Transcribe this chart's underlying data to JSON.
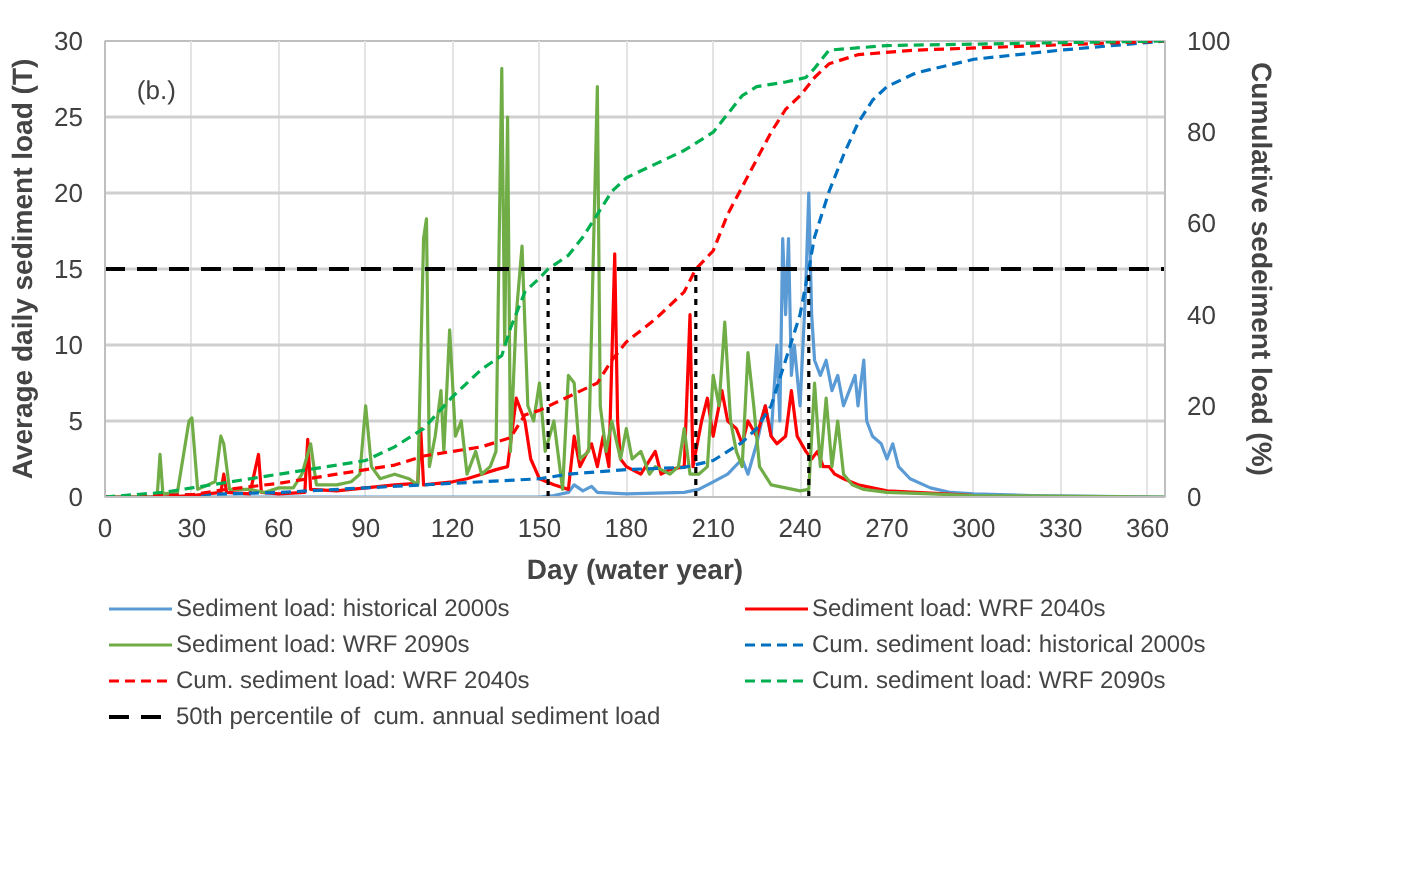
{
  "chart_data": {
    "type": "line",
    "xlabel": "Day (water year)",
    "ylabel": "Average daily sediment load (T)",
    "y2label": "Cumulative sedeiment load (%)",
    "xlim": [
      0,
      366
    ],
    "xticks": [
      0,
      30,
      60,
      90,
      120,
      150,
      180,
      210,
      240,
      270,
      300,
      330,
      360
    ],
    "ylim": [
      0,
      30
    ],
    "yticks": [
      0,
      5,
      10,
      15,
      20,
      25,
      30
    ],
    "y2lim": [
      0,
      100
    ],
    "y2ticks": [
      0,
      20,
      40,
      60,
      80,
      100
    ],
    "grid": true,
    "legend": "bottom",
    "marker": "none",
    "annotations": [
      "(b.)"
    ],
    "series": [
      {
        "name": "Sediment load: historical 2000s",
        "color": "#5b9bd5",
        "line_style": "solid",
        "x": [
          0,
          150,
          155,
          160,
          162,
          165,
          168,
          170,
          180,
          200,
          205,
          210,
          215,
          220,
          222,
          225,
          228,
          230,
          232,
          233,
          234,
          235,
          236,
          237,
          238,
          240,
          242,
          243,
          244,
          245,
          247,
          249,
          251,
          253,
          255,
          257,
          259,
          260,
          262,
          263,
          265,
          268,
          270,
          272,
          274,
          278,
          285,
          292,
          300,
          320,
          366
        ],
        "values": [
          0,
          0,
          0.1,
          0.3,
          0.8,
          0.4,
          0.7,
          0.3,
          0.2,
          0.3,
          0.5,
          1,
          1.5,
          2.5,
          1.5,
          3.5,
          6,
          4,
          10,
          5,
          17,
          12,
          17,
          8,
          10,
          6,
          14,
          20,
          12,
          9,
          8,
          9,
          7,
          8,
          6,
          7,
          8,
          6,
          9,
          5,
          4,
          3.5,
          2.5,
          3.5,
          2,
          1.2,
          0.6,
          0.3,
          0.2,
          0.1,
          0
        ]
      },
      {
        "name": "Sediment load: WRF 2040s",
        "color": "#ff0000",
        "line_style": "solid",
        "x": [
          0,
          20,
          30,
          40,
          41,
          42,
          50,
          53,
          54,
          60,
          69,
          70,
          71,
          80,
          90,
          100,
          108,
          109,
          110,
          120,
          125,
          130,
          135,
          139,
          142,
          145,
          147,
          150,
          155,
          160,
          162,
          164,
          168,
          170,
          172,
          174,
          176,
          177,
          178,
          180,
          185,
          190,
          192,
          195,
          200,
          202,
          203,
          206,
          208,
          210,
          213,
          215,
          218,
          220,
          222,
          225,
          228,
          230,
          232,
          235,
          237,
          239,
          242,
          244,
          246,
          248,
          250,
          252,
          255,
          260,
          265,
          270,
          280,
          290,
          300
        ],
        "values": [
          0,
          0,
          0.1,
          0.3,
          1.5,
          0.3,
          0.2,
          2.8,
          0.3,
          0.2,
          0.3,
          3.8,
          0.5,
          0.4,
          0.6,
          0.8,
          0.9,
          4.5,
          0.8,
          1.0,
          1.2,
          1.5,
          1.8,
          2.0,
          6.5,
          5,
          2.5,
          1.2,
          0.8,
          0.5,
          4,
          2,
          3.5,
          2,
          4,
          2,
          16,
          5,
          2.5,
          2,
          1.5,
          3,
          1.5,
          1.8,
          2,
          12,
          2,
          5,
          6.5,
          4,
          7,
          5,
          4.5,
          3.5,
          5,
          4,
          6,
          4,
          3.5,
          4,
          7,
          4,
          3,
          2.5,
          3,
          2,
          2,
          1.5,
          1.2,
          0.8,
          0.6,
          0.4,
          0.3,
          0.2,
          0.1
        ]
      },
      {
        "name": "Sediment load: WRF 2090s",
        "color": "#70ad47",
        "line_style": "solid",
        "x": [
          0,
          18,
          19,
          20,
          25,
          29,
          30,
          32,
          38,
          40,
          41,
          43,
          50,
          55,
          60,
          65,
          68,
          71,
          73,
          80,
          85,
          88,
          90,
          92,
          95,
          100,
          105,
          108,
          110,
          111,
          112,
          114,
          116,
          117,
          119,
          121,
          123,
          125,
          128,
          130,
          133,
          135,
          137,
          138,
          139,
          140,
          142,
          144,
          146,
          148,
          150,
          152,
          155,
          158,
          160,
          162,
          164,
          167,
          170,
          171,
          173,
          175,
          178,
          180,
          182,
          185,
          188,
          190,
          195,
          198,
          200,
          202,
          205,
          208,
          210,
          212,
          214,
          216,
          218,
          220,
          222,
          224,
          226,
          230,
          235,
          240,
          243,
          245,
          247,
          249,
          251,
          253,
          255,
          258,
          262,
          270,
          285,
          300,
          366
        ],
        "values": [
          0,
          0,
          2.8,
          0.2,
          0.3,
          5,
          5.2,
          0.5,
          1,
          4,
          3.5,
          0.5,
          0.5,
          0.3,
          0.6,
          0.6,
          1.5,
          3.5,
          0.8,
          0.8,
          1.0,
          1.5,
          6,
          2,
          1.2,
          1.5,
          1.2,
          0.8,
          17,
          18.3,
          2,
          4,
          7,
          3,
          11,
          4,
          5,
          1.5,
          3,
          1.5,
          2,
          3,
          28.2,
          10,
          25,
          3,
          12,
          16.5,
          6,
          5,
          7.5,
          3,
          5,
          0.5,
          8,
          7.5,
          2.5,
          3,
          27,
          6,
          3,
          5,
          2.5,
          4.5,
          2.5,
          3,
          1.5,
          2,
          1.5,
          2,
          4.5,
          1.5,
          1.5,
          2,
          8,
          6,
          11.5,
          5,
          3,
          2,
          9.5,
          6,
          2,
          0.8,
          0.6,
          0.4,
          0.5,
          7.5,
          2,
          6.5,
          2,
          5,
          1.5,
          0.8,
          0.5,
          0.3,
          0.2,
          0.1,
          0
        ]
      },
      {
        "name": "Cum. sediment load: historical 2000s",
        "color": "#0070c0",
        "line_style": "dashed",
        "axis": "y2",
        "x": [
          0,
          30,
          60,
          90,
          120,
          150,
          160,
          180,
          200,
          210,
          220,
          225,
          230,
          235,
          240,
          243,
          245,
          250,
          255,
          260,
          265,
          270,
          280,
          300,
          330,
          366
        ],
        "values": [
          0,
          0.5,
          1,
          2,
          3,
          4,
          5,
          6,
          6.5,
          8,
          12,
          15,
          20,
          30,
          40,
          50,
          57,
          67,
          75,
          82,
          87,
          90,
          93,
          96,
          98,
          100
        ]
      },
      {
        "name": "Cum. sediment load: WRF 2040s",
        "color": "#ff0000",
        "line_style": "dashed",
        "axis": "y2",
        "x": [
          0,
          30,
          40,
          60,
          80,
          100,
          110,
          120,
          130,
          140,
          145,
          150,
          160,
          170,
          175,
          180,
          190,
          200,
          204,
          210,
          215,
          220,
          225,
          230,
          235,
          240,
          245,
          250,
          260,
          280,
          366
        ],
        "values": [
          0,
          0.5,
          1.5,
          3,
          5,
          7,
          9,
          10,
          11,
          13,
          18,
          19,
          22,
          25,
          30,
          34,
          39,
          45,
          50,
          54,
          62,
          68,
          74,
          80,
          85,
          88,
          92,
          95,
          97,
          98,
          100
        ]
      },
      {
        "name": "Cum. sediment load: WRF 2090s",
        "color": "#00b050",
        "line_style": "dashed",
        "axis": "y2",
        "x": [
          0,
          20,
          30,
          40,
          60,
          80,
          90,
          100,
          110,
          120,
          130,
          137,
          140,
          145,
          150,
          153,
          160,
          165,
          170,
          175,
          180,
          190,
          200,
          210,
          215,
          220,
          225,
          235,
          242,
          245,
          250,
          270,
          366
        ],
        "values": [
          0,
          1,
          2,
          3,
          5,
          7,
          8,
          11,
          15,
          22,
          28,
          31,
          37,
          45,
          48,
          50,
          53,
          57,
          62,
          67,
          70,
          73,
          76,
          80,
          84,
          88,
          90,
          91,
          92,
          94,
          98,
          99,
          100
        ]
      },
      {
        "name": "50th percentile of  cum. annual sediment load",
        "color": "#000000",
        "line_style": "dashed",
        "axis": "y2",
        "x": [
          0,
          366
        ],
        "values": [
          50,
          50
        ]
      },
      {
        "color": "#000000",
        "line_style": "dotted",
        "axis": "y2",
        "x": [
          153,
          153
        ],
        "values": [
          0,
          50
        ]
      },
      {
        "color": "#000000",
        "line_style": "dotted",
        "axis": "y2",
        "x": [
          204,
          204
        ],
        "values": [
          0,
          50
        ]
      },
      {
        "color": "#000000",
        "line_style": "dotted",
        "axis": "y2",
        "x": [
          243,
          243
        ],
        "values": [
          0,
          50
        ]
      }
    ]
  }
}
